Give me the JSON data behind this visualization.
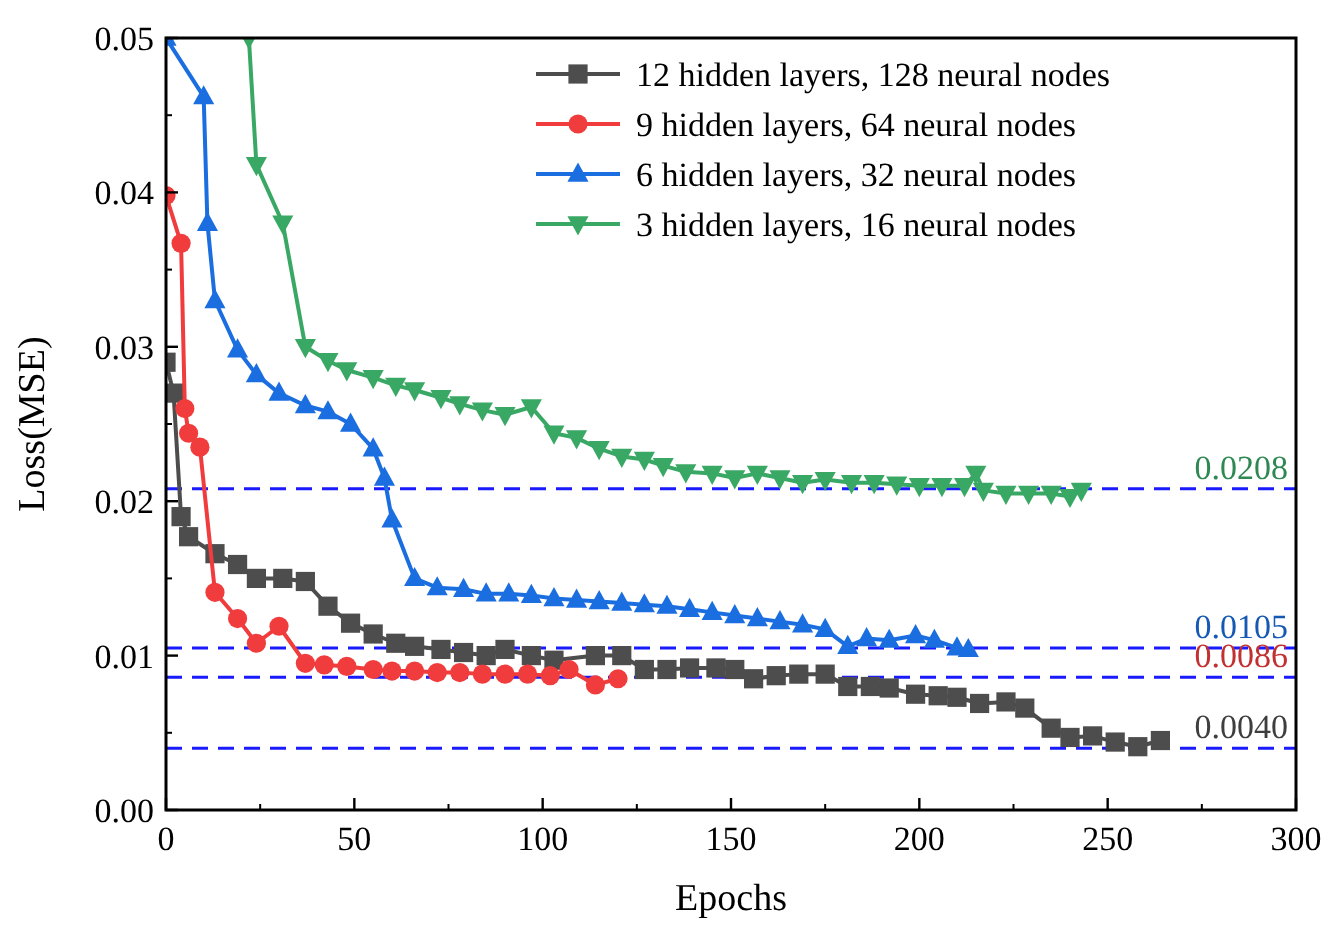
{
  "chart_data": {
    "type": "line",
    "xlabel": "Epochs",
    "ylabel": "Loss(MSE)",
    "xlim": [
      0,
      300
    ],
    "xticks": [
      0,
      50,
      100,
      150,
      200,
      250,
      300
    ],
    "ylim": [
      0,
      0.05
    ],
    "yticks": [
      {
        "value": 0,
        "label": "0.00"
      },
      {
        "value": 0.01,
        "label": "0.01"
      },
      {
        "value": 0.02,
        "label": "0.02"
      },
      {
        "value": 0.03,
        "label": "0.03"
      },
      {
        "value": 0.04,
        "label": "0.04"
      },
      {
        "value": 0.05,
        "label": "0.05"
      }
    ],
    "grid": false,
    "legend": "top right",
    "line_style": "solid",
    "series": [
      {
        "name": "12 hidden layers, 128 neural nodes",
        "color": "#4d4d4d",
        "marker": "square",
        "x": [
          0,
          2,
          4,
          6,
          13,
          19,
          24,
          31,
          37,
          43,
          49,
          55,
          61,
          66,
          73,
          79,
          85,
          90,
          97,
          103,
          114,
          121,
          127,
          133,
          139,
          146,
          151,
          156,
          162,
          168,
          175,
          181,
          187,
          192,
          199,
          205,
          210,
          216,
          223,
          228,
          235,
          240,
          246,
          252,
          258,
          264
        ],
        "values": [
          0.029,
          0.027,
          0.019,
          0.0177,
          0.0166,
          0.0159,
          0.015,
          0.015,
          0.0148,
          0.0132,
          0.0121,
          0.0114,
          0.0108,
          0.0106,
          0.0104,
          0.0102,
          0.01,
          0.0104,
          0.01,
          0.0097,
          0.01,
          0.01,
          0.0091,
          0.0091,
          0.0092,
          0.0092,
          0.0091,
          0.0085,
          0.0087,
          0.0088,
          0.0088,
          0.008,
          0.008,
          0.0079,
          0.0075,
          0.0074,
          0.0073,
          0.0069,
          0.007,
          0.0066,
          0.0053,
          0.0047,
          0.0048,
          0.0044,
          0.0041,
          0.0045
        ]
      },
      {
        "name": "9 hidden layers, 64 neural nodes",
        "color": "#f03c3c",
        "marker": "circle",
        "x": [
          0,
          4,
          5,
          6,
          9,
          13,
          19,
          24,
          30,
          37,
          42,
          48,
          55,
          60,
          66,
          72,
          78,
          84,
          90,
          96,
          102,
          107,
          114,
          120
        ],
        "values": [
          0.0398,
          0.0367,
          0.026,
          0.0244,
          0.0235,
          0.0141,
          0.0124,
          0.0108,
          0.0119,
          0.0095,
          0.0094,
          0.0093,
          0.0091,
          0.009,
          0.009,
          0.0089,
          0.0089,
          0.0088,
          0.0088,
          0.0088,
          0.0087,
          0.0091,
          0.0081,
          0.0085
        ]
      },
      {
        "name": "6 hidden layers, 32 neural nodes",
        "color": "#1a6ee0",
        "marker": "triangle",
        "x": [
          0,
          10,
          11,
          13,
          19,
          24,
          30,
          37,
          43,
          49,
          55,
          58,
          60,
          66,
          72,
          79,
          85,
          91,
          97,
          103,
          109,
          115,
          121,
          127,
          133,
          139,
          145,
          151,
          157,
          163,
          169,
          175,
          181,
          186,
          192,
          199,
          204,
          210,
          213
        ],
        "values": [
          0.05,
          0.0462,
          0.038,
          0.033,
          0.0298,
          0.0282,
          0.027,
          0.0262,
          0.0258,
          0.025,
          0.0234,
          0.0215,
          0.0188,
          0.015,
          0.0144,
          0.0143,
          0.014,
          0.014,
          0.0139,
          0.0137,
          0.0136,
          0.0135,
          0.0134,
          0.0133,
          0.0132,
          0.013,
          0.0128,
          0.0126,
          0.0124,
          0.0122,
          0.012,
          0.0117,
          0.0106,
          0.0111,
          0.011,
          0.0113,
          0.011,
          0.0105,
          0.0104
        ]
      },
      {
        "name": "3 hidden layers, 16 neural nodes",
        "color": "#3aa865",
        "marker": "triangle-down",
        "x": [
          22,
          24,
          31,
          37,
          43,
          48,
          55,
          61,
          66,
          73,
          78,
          84,
          90,
          97,
          103,
          109,
          115,
          121,
          127,
          132,
          138,
          145,
          151,
          157,
          163,
          169,
          175,
          182,
          188,
          194,
          200,
          206,
          212,
          215,
          217,
          223,
          229,
          235,
          240,
          243
        ],
        "values": [
          0.05,
          0.0418,
          0.038,
          0.03,
          0.0291,
          0.0285,
          0.028,
          0.0275,
          0.0272,
          0.0267,
          0.0263,
          0.0259,
          0.0256,
          0.0261,
          0.0244,
          0.0241,
          0.0234,
          0.0229,
          0.0227,
          0.0223,
          0.0219,
          0.0218,
          0.0215,
          0.0218,
          0.0215,
          0.0212,
          0.0214,
          0.0212,
          0.0212,
          0.0211,
          0.021,
          0.021,
          0.021,
          0.0218,
          0.0207,
          0.0205,
          0.0205,
          0.0205,
          0.0203,
          0.0207
        ]
      }
    ],
    "ref_lines": [
      {
        "axis": "y",
        "value": 0.0208,
        "label": "0.0208",
        "color": "#1a1aff",
        "line_style": "dashed"
      },
      {
        "axis": "y",
        "value": 0.0105,
        "label": "0.0105",
        "color": "#1a1aff",
        "line_style": "dashed"
      },
      {
        "axis": "y",
        "value": 0.0086,
        "label": "0.0086",
        "color": "#1a1aff",
        "line_style": "dashed"
      },
      {
        "axis": "y",
        "value": 0.004,
        "label": "0.0040",
        "color": "#1a1aff",
        "line_style": "dashed"
      }
    ]
  }
}
